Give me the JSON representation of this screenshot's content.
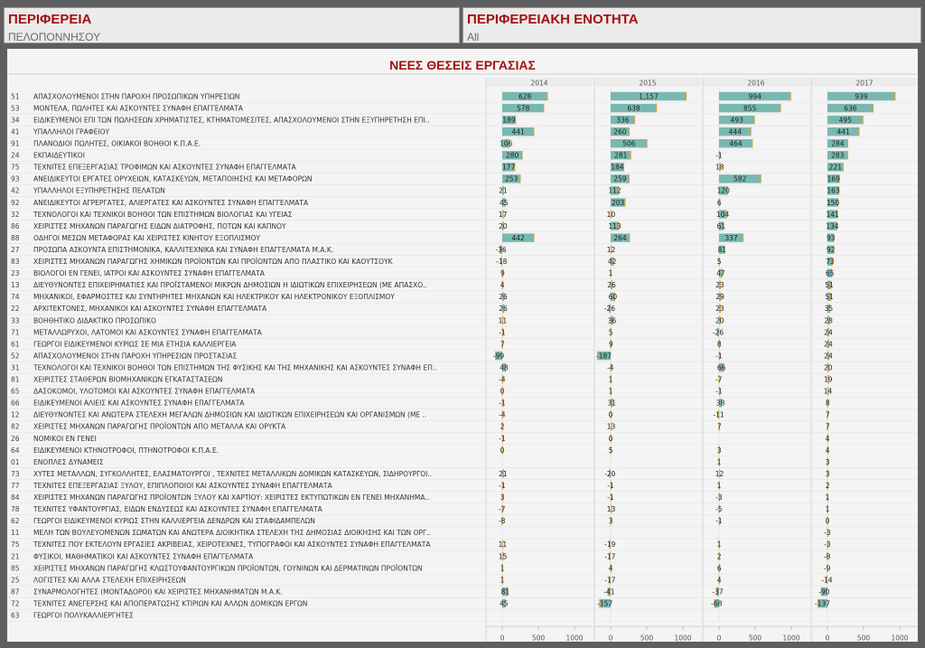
{
  "filters": {
    "region": {
      "label": "ΠΕΡΙΦΕΡΕΙΑ",
      "value": "ΠΕΛΟΠΟΝΝΗΣΟΥ"
    },
    "unit": {
      "label": "ΠΕΡΙΦΕΡΕΙΑΚΗ ΕΝΟΤΗΤΑ",
      "value": "All"
    }
  },
  "colors": {
    "bar": "#79b8b0",
    "bar_edge": "#d7a34a",
    "title": "#a21010"
  },
  "chart_data": {
    "type": "bar",
    "orientation": "horizontal",
    "title": "ΝΕΕΣ ΘΕΣΕΙΣ ΕΡΓΑΣΙΑΣ",
    "panels": [
      "2014",
      "2015",
      "2016",
      "2017"
    ],
    "xlim": [
      -200,
      1050
    ],
    "xticks": [
      0,
      500,
      1000
    ],
    "rows": [
      {
        "code": "51",
        "label": "ΑΠΑΣΧΟΛΟΥΜΕΝΟΙ ΣΤΗΝ ΠΑΡΟΧΗ ΠΡΟΣΩΠΙΚΩΝ ΥΠΗΡΕΣΙΩΝ",
        "values": [
          628,
          1157,
          994,
          939
        ],
        "texts": [
          "628",
          "1,157",
          "994",
          "939"
        ]
      },
      {
        "code": "53",
        "label": "ΜΟΝΤΕΛΑ, ΠΩΛΗΤΕΣ ΚΑΙ ΑΣΚΟΥΝΤΕΣ ΣΥΝΑΦΗ ΕΠΑΓΓΕΛΜΑΤΑ",
        "values": [
          578,
          638,
          855,
          636
        ],
        "texts": [
          "578",
          "638",
          "855",
          "636"
        ]
      },
      {
        "code": "34",
        "label": "ΕΙΔΙΚΕΥΜΕΝΟΙ ΕΠΙ ΤΩΝ ΠΩΛΗΣΕΩΝ ΧΡΗΜΑΤΙΣΤΕΣ, ΚΤΗΜΑΤΟΜΕΣΙΤΕΣ, ΑΠΑΣΧΟΛΟΥΜΕΝΟΙ ΣΤΗΝ ΕΞΥΠΗΡΕΤΗΣΗ ΕΠΙ..",
        "values": [
          189,
          336,
          493,
          495
        ],
        "texts": [
          "189",
          "336",
          "493",
          "495"
        ]
      },
      {
        "code": "41",
        "label": "ΥΠΑΛΛΗΛΟΙ ΓΡΑΦΕΙΟΥ",
        "values": [
          441,
          260,
          444,
          441
        ],
        "texts": [
          "441",
          "260",
          "444",
          "441"
        ]
      },
      {
        "code": "91",
        "label": "ΠΛΑΝΟΔΙΟΙ ΠΩΛΗΤΕΣ, ΟΙΚΙΑΚΟΙ ΒΟΗΘΟΙ Κ.Π.Α.Ε.",
        "values": [
          106,
          506,
          464,
          284
        ],
        "texts": [
          "106",
          "506",
          "464",
          "284"
        ]
      },
      {
        "code": "24",
        "label": "ΕΚΠΑΙΔΕΥΤΙΚΟΙ",
        "values": [
          280,
          281,
          -1,
          283
        ],
        "texts": [
          "280",
          "281",
          "-1",
          "283"
        ]
      },
      {
        "code": "75",
        "label": "ΤΕΧΝΙΤΕΣ ΕΠΕΞΕΡΓΑΣΙΑΣ ΤΡΟΦΙΜΩΝ ΚΑΙ ΑΣΚΟΥΝΤΕΣ ΣΥΝΑΦΗ ΕΠΑΓΓΕΛΜΑΤΑ",
        "values": [
          177,
          184,
          18,
          221
        ],
        "texts": [
          "177",
          "184",
          "18",
          "221"
        ]
      },
      {
        "code": "93",
        "label": "ΑΝΕΙΔΙΚΕΥΤΟΙ ΕΡΓΑΤΕΣ ΟΡΥΧΕΙΩΝ, ΚΑΤΑΣΚΕΥΩΝ, ΜΕΤΑΠΟΙΗΣΗΣ ΚΑΙ ΜΕΤΑΦΟΡΩΝ",
        "values": [
          253,
          259,
          582,
          169
        ],
        "texts": [
          "253",
          "259",
          "582",
          "169"
        ]
      },
      {
        "code": "42",
        "label": "ΥΠΑΛΛΗΛΟΙ ΕΞΥΠΗΡΕΤΗΣΗΣ ΠΕΛΑΤΩΝ",
        "values": [
          21,
          112,
          120,
          163
        ],
        "texts": [
          "21",
          "112",
          "120",
          "163"
        ]
      },
      {
        "code": "92",
        "label": "ΑΝΕΙΔΙΚΕΥΤΟΙ ΑΓΡΕΡΓΑΤΕΣ, ΑΛΙΕΡΓΑΤΕΣ ΚΑΙ ΑΣΚΟΥΝΤΕΣ ΣΥΝΑΦΗ ΕΠΑΓΓΕΛΜΑΤΑ",
        "values": [
          45,
          203,
          6,
          150
        ],
        "texts": [
          "45",
          "203",
          "6",
          "150"
        ]
      },
      {
        "code": "32",
        "label": "ΤΕΧΝΟΛΟΓΟΙ ΚΑΙ ΤΕΧΝΙΚΟΙ ΒΟΗΘΟΙ ΤΩΝ ΕΠΙΣΤΗΜΩΝ ΒΙΟΛΟΓΙΑΣ ΚΑΙ ΥΓΕΙΑΣ",
        "values": [
          17,
          10,
          104,
          141
        ],
        "texts": [
          "17",
          "10",
          "104",
          "141"
        ]
      },
      {
        "code": "86",
        "label": "ΧΕΙΡΙΣΤΕΣ ΜΗΧΑΝΩΝ ΠΑΡΑΓΩΓΗΣ ΕΙΔΩΝ ΔΙΑΤΡΟΦΗΣ, ΠΟΤΩΝ ΚΑΙ ΚΑΠΝΟΥ",
        "values": [
          20,
          113,
          61,
          134
        ],
        "texts": [
          "20",
          "113",
          "61",
          "134"
        ]
      },
      {
        "code": "88",
        "label": "ΟΔΗΓΟΙ ΜΕΣΩΝ ΜΕΤΑΦΟΡΑΣ ΚΑΙ ΧΕΙΡΙΣΤΕΣ ΚΙΝΗΤΟΥ ΕΞΟΠΛΙΣΜΟΥ",
        "values": [
          442,
          264,
          337,
          93
        ],
        "texts": [
          "442",
          "264",
          "337",
          "93"
        ]
      },
      {
        "code": "27",
        "label": "ΠΡΟΣΩΠΑ ΑΣΚΟΥΝΤΑ ΕΠΙΣΤΗΜΟΝΙΚΑ, ΚΑΛΛΙΤΕΧΝΙΚΑ ΚΑΙ ΣΥΝΑΦΗ ΕΠΑΓΓΕΛΜΑΤΑ Μ.Α.Κ.",
        "values": [
          -36,
          12,
          81,
          92
        ],
        "texts": [
          "-36",
          "12",
          "81",
          "92"
        ]
      },
      {
        "code": "83",
        "label": "ΧΕΙΡΙΣΤΕΣ ΜΗΧΑΝΩΝ ΠΑΡΑΓΩΓΗΣ ΧΗΜΙΚΩΝ ΠΡΟΪΟΝΤΩΝ ΚΑΙ ΠΡΟΪΟΝΤΩΝ ΑΠΟ ΠΛΑΣΤΙΚΟ ΚΑΙ ΚΑΟΥΤΣΟΥΚ",
        "values": [
          -18,
          42,
          5,
          73
        ],
        "texts": [
          "-18",
          "42",
          "5",
          "73"
        ]
      },
      {
        "code": "23",
        "label": "ΒΙΟΛΟΓΟΙ ΕΝ ΓΕΝΕΙ, ΙΑΤΡΟΙ ΚΑΙ ΑΣΚΟΥΝΤΕΣ ΣΥΝΑΦΗ ΕΠΑΓΓΕΛΜΑΤΑ",
        "values": [
          9,
          1,
          47,
          65
        ],
        "texts": [
          "9",
          "1",
          "47",
          "65"
        ]
      },
      {
        "code": "13",
        "label": "ΔΙΕΥΘΥΝΟΝΤΕΣ ΕΠΙΧΕΙΡΗΜΑΤΙΕΣ ΚΑΙ ΠΡΟΪΣΤΑΜΕΝΟΙ ΜΙΚΡΩΝ ΔΗΜΟΣΙΩΝ Η ΙΔΙΩΤΙΚΩΝ ΕΠΙΧΕΙΡΗΣΕΩΝ (ΜΕ ΑΠΑΣΧΟ..",
        "values": [
          4,
          26,
          23,
          51
        ],
        "texts": [
          "4",
          "26",
          "23",
          "51"
        ]
      },
      {
        "code": "74",
        "label": "ΜΗΧΑΝΙΚΟΙ, ΕΦΑΡΜΟΣΤΕΣ ΚΑΙ ΣΥΝΤΗΡΗΤΕΣ  ΜΗΧΑΝΩΝ ΚΑΙ ΗΛΕΚΤΡΙΚΟΥ ΚΑΙ ΗΛΕΚΤΡΟΝΙΚΟΥ  ΕΞΟΠΛΙΣΜΟΥ",
        "values": [
          26,
          60,
          29,
          51
        ],
        "texts": [
          "26",
          "60",
          "29",
          "51"
        ]
      },
      {
        "code": "22",
        "label": "ΑΡΧΙΤΕΚΤΟΝΕΣ, ΜΗΧΑΝΙΚΟΙ ΚΑΙ ΑΣΚΟΥΝΤΕΣ ΣΥΝΑΦΗ ΕΠΑΓΓΕΛΜΑΤΑ",
        "values": [
          26,
          -26,
          23,
          35
        ],
        "texts": [
          "26",
          "-26",
          "23",
          "35"
        ]
      },
      {
        "code": "33",
        "label": "ΒΟΗΘΗΤΙΚΟ ΔΙΔΑΚΤΙΚΟ ΠΡΟΣΩΠΙΚΟ",
        "values": [
          11,
          36,
          20,
          28
        ],
        "texts": [
          "11",
          "36",
          "20",
          "28"
        ]
      },
      {
        "code": "71",
        "label": "ΜΕΤΑΛΛΩΡΥΧΟΙ, ΛΑΤΟΜΟΙ ΚΑΙ ΑΣΚΟΥΝΤΕΣ ΣΥΝΑΦΗ ΕΠΑΓΓΕΛΜΑΤΑ",
        "values": [
          -1,
          5,
          -26,
          24
        ],
        "texts": [
          "-1",
          "5",
          "-26",
          "24"
        ]
      },
      {
        "code": "61",
        "label": "ΓΕΩΡΓΟΙ ΕΙΔΙΚΕΥΜΕΝΟΙ ΚΥΡΙΩΣ ΣΕ ΜΙΑ ΕΤΗΣΙΑ ΚΑΛΛΙΕΡΓΕΙΑ",
        "values": [
          7,
          9,
          8,
          24
        ],
        "texts": [
          "7",
          "9",
          "8",
          "24"
        ]
      },
      {
        "code": "52",
        "label": "ΑΠΑΣΧΟΛΟΥΜΕΝΟΙ ΣΤΗΝ ΠΑΡΟΧΗ ΥΠΗΡΕΣΙΩΝ ΠΡΟΣΤΑΣΙΑΣ",
        "values": [
          -99,
          -187,
          -1,
          24
        ],
        "texts": [
          "-99",
          "-187",
          "-1",
          "24"
        ]
      },
      {
        "code": "31",
        "label": "ΤΕΧΝΟΛΟΓΟΙ ΚΑΙ ΤΕΧΝΙΚΟΙ ΒΟΗΘΟΙ ΤΩΝ ΕΠΙΣΤΗΜΩΝ ΤΗΣ ΦΥΣΙΚΗΣ ΚΑΙ ΤΗΣ ΜΗΧΑΝΙΚΗΣ ΚΑΙ ΑΣΚΟΥΝΤΕΣ ΣΥΝΑΦΗ ΕΠ..",
        "values": [
          48,
          -4,
          66,
          20
        ],
        "texts": [
          "48",
          "-4",
          "66",
          "20"
        ]
      },
      {
        "code": "81",
        "label": "ΧΕΙΡΙΣΤΕΣ ΣΤΑΘΕΡΩΝ ΒΙΟΜΗΧΑΝΙΚΩΝ ΕΓΚΑΤΑΣΤΑΣΕΩΝ",
        "values": [
          -4,
          1,
          -7,
          19
        ],
        "texts": [
          "-4",
          "1",
          "-7",
          "19"
        ]
      },
      {
        "code": "65",
        "label": "ΔΑΣΟΚΟΜΟΙ, ΥΛΟΤΟΜΟΙ ΚΑΙ ΑΣΚΟΥΝΤΕΣ ΣΥΝΑΦΗ ΕΠΑΓΓΕΛΜΑΤΑ",
        "values": [
          0,
          1,
          -1,
          14
        ],
        "texts": [
          "0",
          "1",
          "-1",
          "14"
        ]
      },
      {
        "code": "66",
        "label": "ΕΙΔΙΚΕΥΜΕΝΟΙ ΑΛΙΕΙΣ ΚΑΙ ΑΣΚΟΥΝΤΕΣ ΣΥΝΑΦΗ ΕΠΑΓΓΕΛΜΑΤΑ",
        "values": [
          -1,
          31,
          38,
          8
        ],
        "texts": [
          "-1",
          "31",
          "38",
          "8"
        ]
      },
      {
        "code": "12",
        "label": "ΔΙΕΥΘΥΝΟΝΤΕΣ ΚΑΙ ΑΝΩΤΕΡΑ ΣΤΕΛΕΧΗ ΜΕΓΑΛΩΝ ΔΗΜΟΣΙΩΝ ΚΑΙ ΙΔΙΩΤΙΚΩΝ ΕΠΙΧΕΙΡΗΣΕΩΝ ΚΑΙ ΟΡΓΑΝΙΣΜΩΝ (ΜΕ ..",
        "values": [
          -4,
          0,
          -11,
          7
        ],
        "texts": [
          "-4",
          "0",
          "-11",
          "7"
        ]
      },
      {
        "code": "82",
        "label": "ΧΕΙΡΙΣΤΕΣ ΜΗΧΑΝΩΝ ΠΑΡΑΓΩΓΗΣ ΠΡΟΪΟΝΤΩΝ ΑΠΟ ΜΕΤΑΛΛΑ ΚΑΙ ΟΡΥΚΤΑ",
        "values": [
          2,
          13,
          7,
          7
        ],
        "texts": [
          "2",
          "13",
          "7",
          "7"
        ]
      },
      {
        "code": "26",
        "label": "ΝΟΜΙΚΟΙ ΕΝ ΓΕΝΕΙ",
        "values": [
          -1,
          0,
          null,
          4
        ],
        "texts": [
          "-1",
          "0",
          "",
          "4"
        ]
      },
      {
        "code": "64",
        "label": "ΕΙΔΙΚΕΥΜΕΝΟΙ ΚΤΗΝΟΤΡΟΦΟΙ, ΠΤΗΝΟΤΡΟΦΟΙ Κ.Π.Α.Ε.",
        "values": [
          0,
          5,
          3,
          4
        ],
        "texts": [
          "0",
          "5",
          "3",
          "4"
        ]
      },
      {
        "code": "01",
        "label": "ΕΝΟΠΛΕΣ ΔΥΝΑΜΕΙΣ",
        "values": [
          null,
          null,
          1,
          3
        ],
        "texts": [
          "",
          "",
          "1",
          "3"
        ]
      },
      {
        "code": "73",
        "label": "ΧΥΤΕΣ ΜΕΤΑΛΛΩΝ, ΣΥΓΚΟΛΛΗΤΕΣ, ΕΛΑΣΜΑΤΟΥΡΓΟΙ , ΤΕΧΝΙΤΕΣ ΜΕΤΑΛΛΙΚΩΝ ΔΟΜΙΚΩΝ ΚΑΤΑΣΚΕΥΩΝ, ΣΙΔΗΡΟΥΡΓΟΙ..",
        "values": [
          21,
          -20,
          12,
          3
        ],
        "texts": [
          "21",
          "-20",
          "12",
          "3"
        ]
      },
      {
        "code": "77",
        "label": "ΤΕΧΝΙΤΕΣ ΕΠΕΞΕΡΓΑΣΙΑΣ ΞΥΛΟΥ, ΕΠΙΠΛΟΠΟΙΟΙ ΚΑΙ ΑΣΚΟΥΝΤΕΣ ΣΥΝΑΦΗ ΕΠΑΓΓΕΛΜΑΤΑ",
        "values": [
          -1,
          -1,
          1,
          2
        ],
        "texts": [
          "-1",
          "-1",
          "1",
          "2"
        ]
      },
      {
        "code": "84",
        "label": "ΧΕΙΡΙΣΤΕΣ ΜΗΧΑΝΩΝ ΠΑΡΑΓΩΓΗΣ ΠΡΟΪΟΝΤΩΝ ΞΥΛΟΥ ΚΑΙ ΧΑΡΤΙΟΥ: ΧΕΙΡΙΣΤΕΣ ΕΚΤΥΠΩΤΙΚΩΝ ΕΝ ΓΕΝΕΙ ΜΗΧΑΝΗΜΑ..",
        "values": [
          3,
          -1,
          -3,
          1
        ],
        "texts": [
          "3",
          "-1",
          "-3",
          "1"
        ]
      },
      {
        "code": "78",
        "label": "ΤΕΧΝΙΤΕΣ ΥΦΑΝΤΟΥΡΓΙΑΣ, ΕΙΔΩΝ ΕΝΔΥΣΕΩΣ ΚΑΙ ΑΣΚΟΥΝΤΕΣ ΣΥΝΑΦΗ ΕΠΑΓΓΕΛΜΑΤΑ",
        "values": [
          -7,
          13,
          -5,
          1
        ],
        "texts": [
          "-7",
          "13",
          "-5",
          "1"
        ]
      },
      {
        "code": "62",
        "label": "ΓΕΩΡΓΟΙ ΕΙΔΙΚΕΥΜΕΝΟΙ ΚΥΡΙΩΣ ΣΤΗΝ ΚΑΛΛΙΕΡΓΕΙΑ ΔΕΝΔΡΩΝ ΚΑΙ ΣΤΑΦΙΔΑΜΠΕΛΩΝ",
        "values": [
          -8,
          3,
          -1,
          0
        ],
        "texts": [
          "-8",
          "3",
          "-1",
          "0"
        ]
      },
      {
        "code": "11",
        "label": "ΜΕΛΗ ΤΩΝ ΒΟΥΛΕΥΟΜΕΝΩΝ ΣΩΜΑΤΩΝ ΚΑΙ ΑΝΩΤΕΡΑ ΔΙΟΙΚΗΤΙΚΑ ΣΤΕΛΕΧΗ ΤΗΣ ΔΗΜΟΣΙΑΣ ΔΙΟΙΚΗΣΗΣ ΚΑΙ ΤΩΝ ΟΡΓ..",
        "values": [
          null,
          null,
          null,
          -3
        ],
        "texts": [
          "",
          "",
          "",
          "-3"
        ]
      },
      {
        "code": "75",
        "label": "ΤΕΧΝΙΤΕΣ ΠΟΥ ΕΚΤΕΛΟΥΝ ΕΡΓΑΣΙΕΣ ΑΚΡΙΒΕΙΑΣ, ΧΕΙΡΟΤΕΧΝΕΣ, ΤΥΠΟΓΡΑΦΟΙ ΚΑΙ ΑΣΚΟΥΝΤΕΣ ΣΥΝΑΦΗ ΕΠΑΓΓΕΛΜΑΤΑ",
        "values": [
          11,
          -19,
          1,
          -3
        ],
        "texts": [
          "11",
          "-19",
          "1",
          "-3"
        ]
      },
      {
        "code": "21",
        "label": "ΦΥΣΙΚΟΙ, ΜΑΘΗΜΑΤΙΚΟΙ ΚΑΙ ΑΣΚΟΥΝΤΕΣ ΣΥΝΑΦΗ ΕΠΑΓΓΕΛΜΑΤΑ",
        "values": [
          15,
          -17,
          2,
          -8
        ],
        "texts": [
          "15",
          "-17",
          "2",
          "-8"
        ]
      },
      {
        "code": "85",
        "label": "ΧΕΙΡΙΣΤΕΣ ΜΗΧΑΝΩΝ ΠΑΡΑΓΩΓΗΣ ΚΛΩΣΤΟΥΦΑΝΤΟΥΡΓΙΚΩΝ ΠΡΟΪΟΝΤΩΝ, ΓΟΥΝΙΝΩΝ ΚΑΙ ΔΕΡΜΑΤΙΝΩΝ ΠΡΟΪΟΝΤΩΝ",
        "values": [
          1,
          4,
          6,
          -9
        ],
        "texts": [
          "1",
          "4",
          "6",
          "-9"
        ]
      },
      {
        "code": "25",
        "label": "ΛΟΓΙΣΤΕΣ ΚΑΙ ΑΛΛΑ ΣΤΕΛΕΧΗ ΕΠΙΧΕΙΡΗΣΕΩΝ",
        "values": [
          1,
          -17,
          4,
          -14
        ],
        "texts": [
          "1",
          "-17",
          "4",
          "-14"
        ]
      },
      {
        "code": "87",
        "label": "ΣΥΝΑΡΜΟΛΟΓΗΤΕΣ (ΜΟΝΤΑΔΟΡΟΙ) ΚΑΙ ΧΕΙΡΙΣΤΕΣ ΜΗΧΑΝΗΜΑΤΩΝ Μ.Α.Κ.",
        "values": [
          81,
          -41,
          -37,
          -90
        ],
        "texts": [
          "81",
          "-41",
          "-37",
          "-90"
        ]
      },
      {
        "code": "72",
        "label": "ΤΕΧΝΙΤΕΣ ΑΝΕΓΕΡΣΗΣ ΚΑΙ ΑΠΟΠΕΡΑΤΩΣΗΣ ΚΤΙΡΙΩΝ ΚΑΙ ΑΛΛΩΝ ΔΟΜΙΚΩΝ ΕΡΓΩΝ",
        "values": [
          45,
          -157,
          -68,
          -137
        ],
        "texts": [
          "45",
          "-157",
          "-68",
          "-137"
        ]
      },
      {
        "code": "63",
        "label": "ΓΕΩΡΓΟΙ ΠΟΛΥΚΑΛΛΙΕΡΓΗΤΕΣ",
        "values": [
          null,
          null,
          null,
          null
        ],
        "texts": [
          "",
          "",
          "",
          ""
        ]
      }
    ]
  }
}
